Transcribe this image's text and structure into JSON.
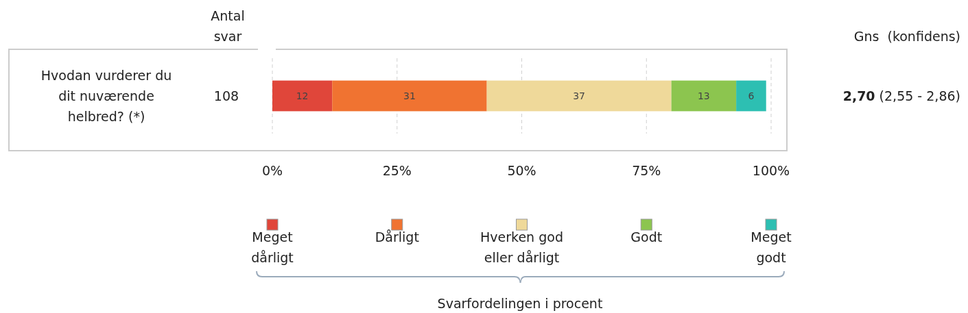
{
  "chart_data": {
    "type": "bar",
    "orientation": "horizontal",
    "stacked": true,
    "categories": [
      "Hvodan vurderer du dit nuværende helbred? (*)"
    ],
    "series": [
      {
        "name": "Meget dårligt",
        "color": "#e0463a",
        "values": [
          12
        ]
      },
      {
        "name": "Dårligt",
        "color": "#f07331",
        "values": [
          31
        ]
      },
      {
        "name": "Hverken god eller dårligt",
        "color": "#efd99a",
        "values": [
          37
        ]
      },
      {
        "name": "Godt",
        "color": "#8cc54f",
        "values": [
          13
        ]
      },
      {
        "name": "Meget godt",
        "color": "#2dbfb2",
        "values": [
          6
        ]
      }
    ],
    "xlim": [
      0,
      100
    ],
    "xticks": [
      {
        "value": 0,
        "label": "0%"
      },
      {
        "value": 25,
        "label": "25%"
      },
      {
        "value": 50,
        "label": "50%"
      },
      {
        "value": 75,
        "label": "75%"
      },
      {
        "value": 100,
        "label": "100%"
      }
    ],
    "grid": "x",
    "legend": "bottom",
    "data_labels": true,
    "annotations": [
      "Antal svar",
      "108",
      "Gns  (konfidens)",
      "2,70",
      "(2,55 - 2,86)",
      "Svarfordelingen i procent"
    ]
  }
}
